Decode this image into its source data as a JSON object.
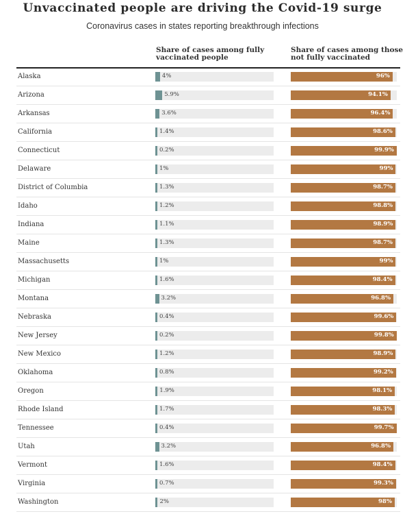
{
  "header": {
    "title": "Unvaccinated people are driving the Covid-19 surge",
    "subtitle": "Coronavirus cases in states reporting breakthrough infections"
  },
  "columns": {
    "vaccinated": "Share of cases among fully vaccinated people",
    "unvaccinated": "Share of cases among those not fully vaccinated"
  },
  "colors": {
    "vaccinated": "#6e9293",
    "unvaccinated": "#b37842",
    "track": "#ececec"
  },
  "chart_data": {
    "type": "bar",
    "title": "Unvaccinated people are driving the Covid-19 surge",
    "subtitle": "Coronavirus cases in states reporting breakthrough infections",
    "unit": "%",
    "xlim": [
      0,
      100
    ],
    "categories": [
      "Alaska",
      "Arizona",
      "Arkansas",
      "California",
      "Connecticut",
      "Delaware",
      "District of Columbia",
      "Idaho",
      "Indiana",
      "Maine",
      "Massachusetts",
      "Michigan",
      "Montana",
      "Nebraska",
      "New Jersey",
      "New Mexico",
      "Oklahoma",
      "Oregon",
      "Rhode Island",
      "Tennessee",
      "Utah",
      "Vermont",
      "Virginia",
      "Washington"
    ],
    "series": [
      {
        "name": "Share of cases among fully vaccinated people",
        "values": [
          4,
          5.9,
          3.6,
          1.4,
          0.2,
          1,
          1.3,
          1.2,
          1.1,
          1.3,
          1,
          1.6,
          3.2,
          0.4,
          0.2,
          1.2,
          0.8,
          1.9,
          1.7,
          0.4,
          3.2,
          1.6,
          0.7,
          2
        ],
        "labels": [
          "4%",
          "5.9%",
          "3.6%",
          "1.4%",
          "0.2%",
          "1%",
          "1.3%",
          "1.2%",
          "1.1%",
          "1.3%",
          "1%",
          "1.6%",
          "3.2%",
          "0.4%",
          "0.2%",
          "1.2%",
          "0.8%",
          "1.9%",
          "1.7%",
          "0.4%",
          "3.2%",
          "1.6%",
          "0.7%",
          "2%"
        ]
      },
      {
        "name": "Share of cases among those not fully vaccinated",
        "values": [
          96,
          94.1,
          96.4,
          98.6,
          99.9,
          99,
          98.7,
          98.8,
          98.9,
          98.7,
          99,
          98.4,
          96.8,
          99.6,
          99.8,
          98.9,
          99.2,
          98.1,
          98.3,
          99.7,
          96.8,
          98.4,
          99.3,
          98
        ],
        "labels": [
          "96%",
          "94.1%",
          "96.4%",
          "98.6%",
          "99.9%",
          "99%",
          "98.7%",
          "98.8%",
          "98.9%",
          "98.7%",
          "99%",
          "98.4%",
          "96.8%",
          "99.6%",
          "99.8%",
          "98.9%",
          "99.2%",
          "98.1%",
          "98.3%",
          "99.7%",
          "96.8%",
          "98.4%",
          "99.3%",
          "98%"
        ]
      }
    ]
  }
}
